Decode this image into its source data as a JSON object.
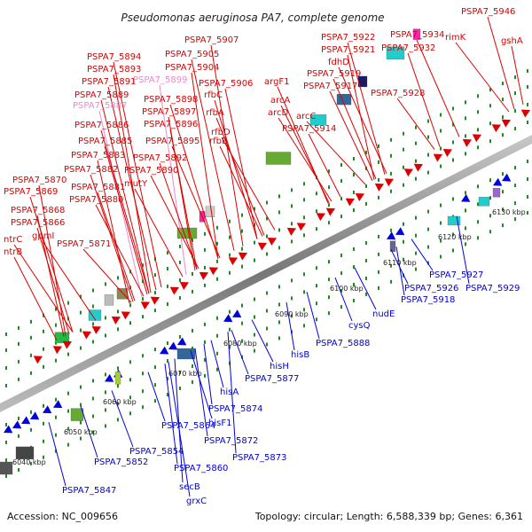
{
  "title": "Pseudomonas aeruginosa PA7, complete genome",
  "footer": {
    "accession": "Accession: NC_009656",
    "summary": "Topology: circular; Length: 6,588,339 bp; Genes: 6,361"
  },
  "colors": {
    "forward": "#dd0000",
    "reverse": "#0000dd",
    "pink_label": "#ee88cc",
    "backbone": "#888888",
    "tick": "#228822"
  },
  "kbp_ticks": [
    "6040 kbp",
    "6050 kbp",
    "6060 kbp",
    "6070 kbp",
    "6080 kbp",
    "6090 kbp",
    "6100 kbp",
    "6110 kbp",
    "6120 kbp",
    "6130 kbp"
  ],
  "forward_labels": [
    "PSPA7_5946",
    "PSPA7_5907",
    "PSPA7_5922",
    "PSPA7_5934",
    "gshA",
    "PSPA7_5921",
    "PSPA7_5932",
    "rimK",
    "PSPA7_5905",
    "PSPA7_5894",
    "PSPA7_5904",
    "fdhD",
    "PSPA7_5893",
    "PSPA7_5919",
    "PSPA7_5891",
    "PSPA7_5899",
    "PSPA7_5906",
    "argF1",
    "PSPA7_5917",
    "PSPA7_5889",
    "rfbC",
    "arcA",
    "PSPA7_5928",
    "PSPA7_5887",
    "PSPA7_5898",
    "PSPA7_5897",
    "rfbA",
    "arcD",
    "arcC",
    "PSPA7_5886",
    "PSPA7_5896",
    "PSPA7_5914",
    "rfbD",
    "PSPA7_5885",
    "PSPA7_5895",
    "rfbB",
    "PSPA7_5883",
    "PSPA7_5892",
    "PSPA7_5882",
    "PSPA7_5890",
    "PSPA7_5870",
    "mutY",
    "PSPA7_5881",
    "PSPA7_5869",
    "PSPA7_5880",
    "PSPA7_5868",
    "PSPA7_5866",
    "gpmI",
    "ntrC",
    "PSPA7_5871",
    "ntrB"
  ],
  "reverse_labels": [
    "PSPA7_5927",
    "PSPA7_5926",
    "PSPA7_5929",
    "PSPA7_5918",
    "nudE",
    "cysQ",
    "PSPA7_5888",
    "hisB",
    "hisH",
    "PSPA7_5877",
    "hisA",
    "PSPA7_5874",
    "hisF1",
    "PSPA7_5864",
    "PSPA7_5872",
    "PSPA7_5873",
    "PSPA7_5854",
    "PSPA7_5852",
    "PSPA7_5860",
    "secB",
    "grxC",
    "PSPA7_5847"
  ]
}
